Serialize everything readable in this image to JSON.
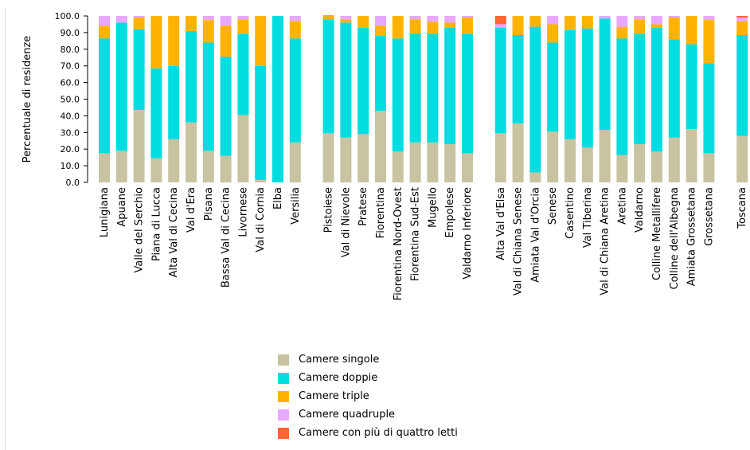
{
  "chart_data": {
    "type": "bar",
    "stacked": true,
    "ylabel": "Percentuale di residenze",
    "ylim": [
      0,
      100
    ],
    "yticks": [
      "0.0",
      "10.0",
      "20.0",
      "30.0",
      "40.0",
      "50.0",
      "60.0",
      "70.0",
      "80.0",
      "90.0",
      "100.0"
    ],
    "categories": [
      "Lunigiana",
      "Apuane",
      "Valle del Serchio",
      "Piana di Lucca",
      "Alta Val di Cecina",
      "Val d'Era",
      "Pisana",
      "Bassa Val di Cecina",
      "Livornese",
      "Val di Cornia",
      "Elba",
      "Versilia",
      "Pistoiese",
      "Val di Nievole",
      "Pratese",
      "Fiorentina",
      "Fiorentina Nord-Ovest",
      "Fiorentina Sud-Est",
      "Mugello",
      "Empolese",
      "Valdarno Inferiore",
      "Alta Val d'Elsa",
      "Val di Chiana Senese",
      "Amiata Val d'Orcia",
      "Senese",
      "Casentino",
      "Val Tiberina",
      "Val di Chiana Aretina",
      "Aretina",
      "Valdarno",
      "Colline Metallifere",
      "Colline dell'Albegna",
      "Amiata Grossetana",
      "Grossetana",
      "Toscana"
    ],
    "groups": [
      12,
      9,
      13,
      1
    ],
    "series": [
      {
        "name": "Camere singole",
        "color": "#c8c3a0",
        "values": [
          17.5,
          19,
          43.5,
          14.5,
          26,
          36,
          19,
          16,
          40.5,
          1.5,
          0,
          24,
          29.5,
          27,
          29,
          43,
          18.5,
          24,
          24,
          23,
          17.5,
          29.5,
          35.5,
          6,
          30.5,
          26,
          21,
          31.5,
          16.5,
          23,
          18.5,
          27,
          32,
          17.5,
          28
        ]
      },
      {
        "name": "Camere doppie",
        "color": "#00dde0",
        "values": [
          69,
          77,
          48.5,
          54,
          44,
          55,
          65,
          59.5,
          48.5,
          68.5,
          100,
          62.5,
          68.5,
          69,
          64,
          45,
          68,
          65,
          65,
          70,
          71.5,
          63.5,
          53,
          87.5,
          53.5,
          65.5,
          71.5,
          67,
          70,
          66,
          74.5,
          59,
          51,
          54,
          60.5
        ]
      },
      {
        "name": "Camere triple",
        "color": "#ffb300",
        "values": [
          7.5,
          0,
          7,
          31.5,
          30,
          9,
          13.5,
          18.5,
          9,
          30,
          0,
          10.5,
          2.5,
          2,
          7,
          6,
          13.5,
          9,
          7.5,
          3,
          10,
          0,
          11.5,
          6.5,
          11,
          8.5,
          7.5,
          0,
          7,
          9,
          2,
          13,
          17,
          26,
          8.5
        ]
      },
      {
        "name": "Camere quadruple",
        "color": "#e8a8ff",
        "values": [
          6,
          4,
          1,
          0,
          0,
          0,
          2.5,
          6,
          2,
          0,
          0,
          3,
          0,
          2,
          0,
          6,
          0,
          2,
          3.5,
          4,
          1,
          2,
          0,
          0,
          5,
          0,
          0,
          1.5,
          6.5,
          2,
          5,
          1,
          0,
          2.5,
          2
        ]
      },
      {
        "name": "Camere con più di quattro letti",
        "color": "#ff6633",
        "values": [
          0,
          0,
          0,
          0,
          0,
          0,
          0,
          0,
          0,
          0,
          0,
          0,
          0,
          0,
          0,
          0,
          0,
          0,
          0,
          0,
          0,
          5,
          0,
          0,
          0,
          0,
          0,
          0,
          0,
          0,
          0,
          0,
          0,
          0,
          1
        ]
      }
    ]
  }
}
